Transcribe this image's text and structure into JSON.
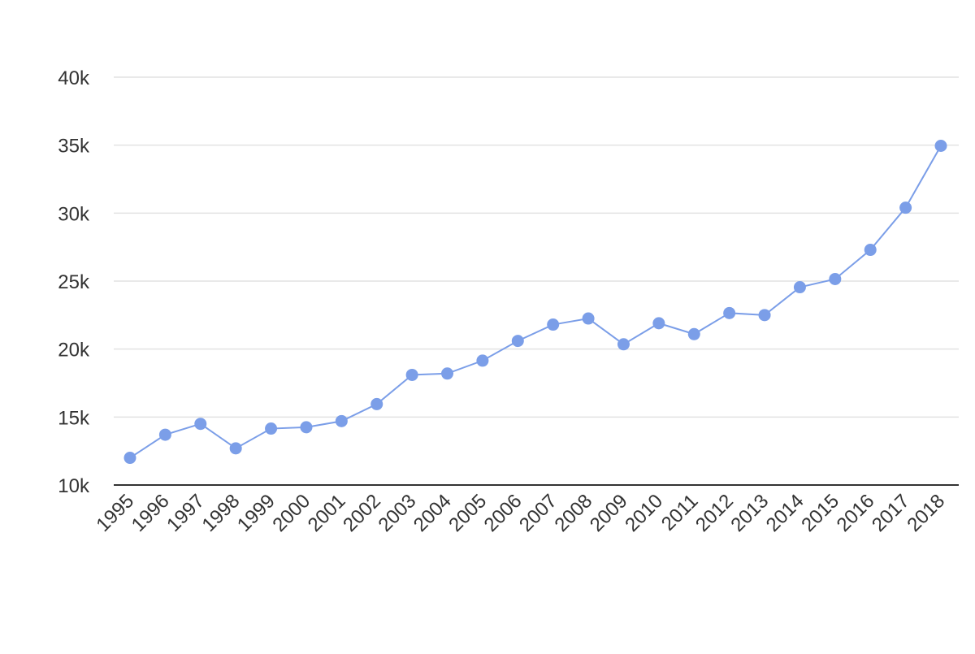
{
  "chart_data": {
    "type": "line",
    "title": "",
    "xlabel": "",
    "ylabel": "",
    "x": [
      "1995",
      "1996",
      "1997",
      "1998",
      "1999",
      "2000",
      "2001",
      "2002",
      "2003",
      "2004",
      "2005",
      "2006",
      "2007",
      "2008",
      "2009",
      "2010",
      "2011",
      "2012",
      "2013",
      "2014",
      "2015",
      "2016",
      "2017",
      "2018"
    ],
    "series": [
      {
        "values": [
          12000,
          13700,
          14500,
          12700,
          14150,
          14250,
          14700,
          15950,
          18100,
          18200,
          19150,
          20600,
          21800,
          22250,
          20350,
          21900,
          21100,
          22650,
          22500,
          24550,
          25150,
          27300,
          30400,
          34950
        ],
        "color": "#7b9ee8"
      }
    ],
    "ylim": [
      10000,
      40000
    ],
    "yticks": [
      10000,
      15000,
      20000,
      25000,
      30000,
      35000,
      40000
    ],
    "ytick_labels": [
      "10k",
      "15k",
      "20k",
      "25k",
      "30k",
      "35k",
      "40k"
    ],
    "grid": true,
    "legend": "none",
    "colors": {
      "series": "#7b9ee8",
      "grid": "#e2e2e2",
      "axis": "#333333",
      "text": "#333333"
    }
  }
}
